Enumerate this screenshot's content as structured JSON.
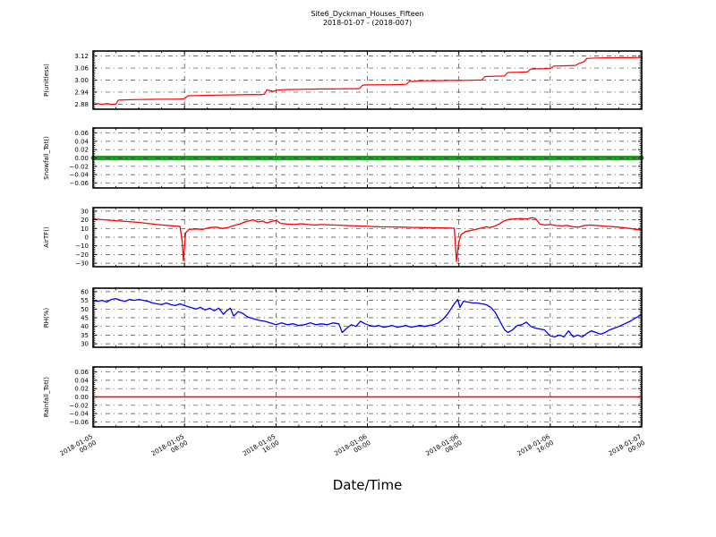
{
  "header": {
    "title_line1": "Site6_Dyckman_Houses_Fifteen",
    "title_line2": "2018-01-07 - (2018-007)"
  },
  "colors": {
    "red": "#ff0000",
    "green": "#20a020",
    "blue": "#0000ff",
    "grid": "#404040",
    "frame": "#000000"
  },
  "x_axis": {
    "label": "Date/Time",
    "range_hours": [
      0,
      48
    ],
    "major_tick_hours": [
      0,
      8,
      16,
      24,
      32,
      40,
      48
    ],
    "minor_step_hours": 2,
    "tick_labels": [
      {
        "date": "2018-01-05",
        "time": "00:00"
      },
      {
        "date": "2018-01-05",
        "time": "08:00"
      },
      {
        "date": "2018-01-05",
        "time": "16:00"
      },
      {
        "date": "2018-01-06",
        "time": "00:00"
      },
      {
        "date": "2018-01-06",
        "time": "08:00"
      },
      {
        "date": "2018-01-06",
        "time": "16:00"
      },
      {
        "date": "2018-01-07",
        "time": "00:00"
      }
    ]
  },
  "chart_data": [
    {
      "type": "line",
      "ylabel": "P(unitless)",
      "color": "#ff0000",
      "linewidth": 1.2,
      "ylim": [
        2.855,
        3.145
      ],
      "ytick_values": [
        2.88,
        2.94,
        3.0,
        3.06,
        3.12
      ],
      "ytick_labels": [
        "2.88",
        "2.94",
        "3.00",
        "3.06",
        "3.12"
      ],
      "y_minor_step": 0.01,
      "points": [
        [
          0,
          2.88
        ],
        [
          0.4,
          2.882
        ],
        [
          0.8,
          2.879
        ],
        [
          1.2,
          2.883
        ],
        [
          1.6,
          2.879
        ],
        [
          2,
          2.88
        ],
        [
          2.2,
          2.9
        ],
        [
          3,
          2.902
        ],
        [
          4,
          2.903
        ],
        [
          5,
          2.904
        ],
        [
          6,
          2.905
        ],
        [
          7,
          2.905
        ],
        [
          7.6,
          2.906
        ],
        [
          8,
          2.907
        ],
        [
          8.3,
          2.922
        ],
        [
          9,
          2.923
        ],
        [
          10,
          2.924
        ],
        [
          11,
          2.925
        ],
        [
          12,
          2.926
        ],
        [
          13,
          2.927
        ],
        [
          14,
          2.928
        ],
        [
          14.6,
          2.927
        ],
        [
          15,
          2.93
        ],
        [
          15.2,
          2.952
        ],
        [
          15.5,
          2.947
        ],
        [
          15.8,
          2.944
        ],
        [
          16.1,
          2.95
        ],
        [
          16.5,
          2.952
        ],
        [
          17,
          2.953
        ],
        [
          18,
          2.954
        ],
        [
          19,
          2.955
        ],
        [
          20,
          2.956
        ],
        [
          21,
          2.956
        ],
        [
          22,
          2.957
        ],
        [
          23,
          2.957
        ],
        [
          23.3,
          2.958
        ],
        [
          23.6,
          2.975
        ],
        [
          24,
          2.976
        ],
        [
          25,
          2.977
        ],
        [
          26,
          2.977
        ],
        [
          27,
          2.978
        ],
        [
          27.4,
          2.979
        ],
        [
          27.7,
          2.995
        ],
        [
          28,
          2.993
        ],
        [
          28.4,
          2.996
        ],
        [
          29,
          2.997
        ],
        [
          30,
          2.997
        ],
        [
          31,
          2.998
        ],
        [
          32,
          2.998
        ],
        [
          33,
          2.999
        ],
        [
          33.5,
          3.0
        ],
        [
          34,
          3.0
        ],
        [
          34.3,
          3.018
        ],
        [
          35,
          3.019
        ],
        [
          35.7,
          3.02
        ],
        [
          36,
          3.021
        ],
        [
          36.3,
          3.038
        ],
        [
          37,
          3.039
        ],
        [
          37.7,
          3.04
        ],
        [
          38,
          3.041
        ],
        [
          38.3,
          3.055
        ],
        [
          39,
          3.056
        ],
        [
          39.7,
          3.057
        ],
        [
          40,
          3.057
        ],
        [
          40.3,
          3.07
        ],
        [
          41,
          3.071
        ],
        [
          41.7,
          3.072
        ],
        [
          42.2,
          3.073
        ],
        [
          42.6,
          3.085
        ],
        [
          42.9,
          3.09
        ],
        [
          43.2,
          3.108
        ],
        [
          44,
          3.11
        ],
        [
          45,
          3.111
        ],
        [
          46,
          3.112
        ],
        [
          47,
          3.112
        ],
        [
          48,
          3.113
        ]
      ]
    },
    {
      "type": "line",
      "ylabel": "Snowfall_Tot()",
      "color": "#20a020",
      "linewidth": 5,
      "ylim": [
        -0.072,
        0.072
      ],
      "ytick_values": [
        -0.06,
        -0.04,
        -0.02,
        0.0,
        0.02,
        0.04,
        0.06
      ],
      "ytick_labels": [
        "−0.06",
        "−0.04",
        "−0.02",
        "0.00",
        "0.02",
        "0.04",
        "0.06"
      ],
      "y_minor_step": 0.005,
      "grid_over_series": true,
      "points": [
        [
          0,
          0
        ],
        [
          48,
          0
        ]
      ]
    },
    {
      "type": "line",
      "ylabel": "AirTF()",
      "color": "#ff0000",
      "linewidth": 1.3,
      "ylim": [
        -34,
        34
      ],
      "ytick_values": [
        -30,
        -20,
        -10,
        0,
        10,
        20,
        30
      ],
      "ytick_labels": [
        "−30",
        "−20",
        "−10",
        "0",
        "10",
        "20",
        "30"
      ],
      "y_minor_step": 2,
      "points": [
        [
          0,
          21
        ],
        [
          1,
          20
        ],
        [
          2,
          19
        ],
        [
          3,
          18
        ],
        [
          4,
          17
        ],
        [
          5,
          15.5
        ],
        [
          6,
          14
        ],
        [
          7,
          13
        ],
        [
          7.6,
          12.5
        ],
        [
          7.8,
          -5
        ],
        [
          7.9,
          -27
        ],
        [
          8.1,
          5
        ],
        [
          8.4,
          9
        ],
        [
          9,
          9.5
        ],
        [
          9.6,
          9
        ],
        [
          10.2,
          11
        ],
        [
          10.8,
          11.5
        ],
        [
          11.3,
          10
        ],
        [
          11.8,
          11
        ],
        [
          12.2,
          13
        ],
        [
          12.8,
          15
        ],
        [
          13.4,
          18
        ],
        [
          14,
          20
        ],
        [
          14.4,
          17.5
        ],
        [
          14.8,
          18.5
        ],
        [
          15.2,
          16.5
        ],
        [
          15.6,
          18
        ],
        [
          16,
          19.5
        ],
        [
          16.4,
          16
        ],
        [
          17,
          15
        ],
        [
          17.6,
          14.5
        ],
        [
          18.2,
          15.5
        ],
        [
          18.8,
          14.5
        ],
        [
          19.4,
          14
        ],
        [
          20,
          14.5
        ],
        [
          21,
          14
        ],
        [
          22,
          13.5
        ],
        [
          23,
          13
        ],
        [
          24,
          12.5
        ],
        [
          25,
          12
        ],
        [
          26,
          11.8
        ],
        [
          27,
          11.5
        ],
        [
          28,
          11.2
        ],
        [
          29,
          11
        ],
        [
          30,
          10.8
        ],
        [
          31,
          10.5
        ],
        [
          31.6,
          10.3
        ],
        [
          31.8,
          -28
        ],
        [
          32,
          -5
        ],
        [
          32.2,
          3
        ],
        [
          32.6,
          6.5
        ],
        [
          33,
          7.5
        ],
        [
          33.5,
          9
        ],
        [
          34,
          10.5
        ],
        [
          34.4,
          12
        ],
        [
          34.7,
          11
        ],
        [
          35.1,
          12.5
        ],
        [
          35.5,
          15
        ],
        [
          36,
          19
        ],
        [
          36.4,
          20.5
        ],
        [
          36.8,
          21
        ],
        [
          37.4,
          21.5
        ],
        [
          38,
          21
        ],
        [
          38.4,
          22.5
        ],
        [
          38.7,
          21.5
        ],
        [
          39.1,
          15
        ],
        [
          39.5,
          14
        ],
        [
          40,
          14.5
        ],
        [
          40.5,
          13.5
        ],
        [
          41,
          13
        ],
        [
          41.5,
          13.5
        ],
        [
          42,
          12
        ],
        [
          42.5,
          11.5
        ],
        [
          43,
          13.5
        ],
        [
          43.5,
          14
        ],
        [
          44,
          13.5
        ],
        [
          45,
          12.5
        ],
        [
          46,
          11.5
        ],
        [
          47,
          10
        ],
        [
          47.5,
          9
        ],
        [
          48,
          8.5
        ]
      ]
    },
    {
      "type": "line",
      "ylabel": "RH(%)",
      "color": "#0000ff",
      "linewidth": 1.3,
      "ylim": [
        28,
        62
      ],
      "ytick_values": [
        30,
        35,
        40,
        45,
        50,
        55,
        60
      ],
      "ytick_labels": [
        "30",
        "35",
        "40",
        "45",
        "50",
        "55",
        "60"
      ],
      "y_minor_step": 1,
      "points": [
        [
          0,
          55
        ],
        [
          0.4,
          54.5
        ],
        [
          0.8,
          55
        ],
        [
          1.2,
          54
        ],
        [
          1.6,
          55.5
        ],
        [
          2,
          56
        ],
        [
          2.4,
          55
        ],
        [
          2.8,
          54.5
        ],
        [
          3.2,
          55.5
        ],
        [
          3.6,
          55
        ],
        [
          4,
          55.5
        ],
        [
          4.4,
          55
        ],
        [
          4.8,
          54.5
        ],
        [
          5.2,
          53.5
        ],
        [
          5.6,
          53
        ],
        [
          6,
          52.5
        ],
        [
          6.4,
          53.5
        ],
        [
          6.8,
          52.5
        ],
        [
          7.2,
          52
        ],
        [
          7.6,
          53
        ],
        [
          8,
          52
        ],
        [
          8.5,
          51
        ],
        [
          9,
          50
        ],
        [
          9.4,
          51
        ],
        [
          9.8,
          49.5
        ],
        [
          10.2,
          50.5
        ],
        [
          10.6,
          49
        ],
        [
          11,
          50.5
        ],
        [
          11.4,
          47
        ],
        [
          11.7,
          49
        ],
        [
          12,
          50.5
        ],
        [
          12.3,
          46
        ],
        [
          12.7,
          48.5
        ],
        [
          13.1,
          47.5
        ],
        [
          13.5,
          45.5
        ],
        [
          14,
          44.5
        ],
        [
          14.5,
          43.5
        ],
        [
          15,
          43
        ],
        [
          15.5,
          42
        ],
        [
          16,
          41
        ],
        [
          16.5,
          42
        ],
        [
          17,
          41
        ],
        [
          17.5,
          41.5
        ],
        [
          18,
          40.5
        ],
        [
          18.5,
          41
        ],
        [
          19,
          42
        ],
        [
          19.5,
          41
        ],
        [
          20,
          41.5
        ],
        [
          20.5,
          41
        ],
        [
          21,
          42
        ],
        [
          21.5,
          41.5
        ],
        [
          21.8,
          36.5
        ],
        [
          22.2,
          39
        ],
        [
          22.6,
          41
        ],
        [
          23,
          40
        ],
        [
          23.4,
          43
        ],
        [
          23.8,
          41.5
        ],
        [
          24.2,
          40.5
        ],
        [
          24.6,
          40
        ],
        [
          25,
          40.5
        ],
        [
          25.4,
          39.5
        ],
        [
          25.8,
          40
        ],
        [
          26.2,
          40.5
        ],
        [
          26.6,
          39.5
        ],
        [
          27,
          40
        ],
        [
          27.4,
          40.5
        ],
        [
          27.8,
          39.5
        ],
        [
          28.2,
          40
        ],
        [
          28.6,
          40.5
        ],
        [
          29,
          40
        ],
        [
          29.4,
          40.5
        ],
        [
          29.8,
          41
        ],
        [
          30.2,
          42
        ],
        [
          30.6,
          44
        ],
        [
          31,
          47
        ],
        [
          31.3,
          50
        ],
        [
          31.6,
          53
        ],
        [
          31.9,
          55.5
        ],
        [
          32.1,
          51
        ],
        [
          32.4,
          54.5
        ],
        [
          32.8,
          54
        ],
        [
          33.2,
          53.5
        ],
        [
          33.6,
          53.5
        ],
        [
          34,
          53
        ],
        [
          34.4,
          52.5
        ],
        [
          34.8,
          51
        ],
        [
          35.2,
          48
        ],
        [
          35.6,
          43
        ],
        [
          36,
          38
        ],
        [
          36.3,
          36.5
        ],
        [
          36.7,
          38
        ],
        [
          37.1,
          40.5
        ],
        [
          37.5,
          41
        ],
        [
          37.9,
          42.5
        ],
        [
          38.3,
          40
        ],
        [
          38.7,
          39
        ],
        [
          39.1,
          38.5
        ],
        [
          39.5,
          38
        ],
        [
          40,
          34.5
        ],
        [
          40.4,
          34
        ],
        [
          40.8,
          35
        ],
        [
          41.2,
          34
        ],
        [
          41.6,
          37.5
        ],
        [
          42,
          34
        ],
        [
          42.4,
          35
        ],
        [
          42.8,
          34
        ],
        [
          43.2,
          36
        ],
        [
          43.6,
          37.5
        ],
        [
          44,
          36.5
        ],
        [
          44.4,
          35.5
        ],
        [
          44.8,
          36.5
        ],
        [
          45.2,
          38
        ],
        [
          45.6,
          39
        ],
        [
          46,
          40
        ],
        [
          46.5,
          41.5
        ],
        [
          47,
          43
        ],
        [
          47.5,
          45
        ],
        [
          48,
          47
        ]
      ]
    },
    {
      "type": "line",
      "ylabel": "Rainfall_Tot()",
      "color": "#ff0000",
      "linewidth": 1.5,
      "ylim": [
        -0.072,
        0.072
      ],
      "ytick_values": [
        -0.06,
        -0.04,
        -0.02,
        0.0,
        0.02,
        0.04,
        0.06
      ],
      "ytick_labels": [
        "−0.06",
        "−0.04",
        "−0.02",
        "0.00",
        "0.02",
        "0.04",
        "0.06"
      ],
      "y_minor_step": 0.005,
      "points": [
        [
          0,
          0
        ],
        [
          48,
          0
        ]
      ]
    }
  ]
}
